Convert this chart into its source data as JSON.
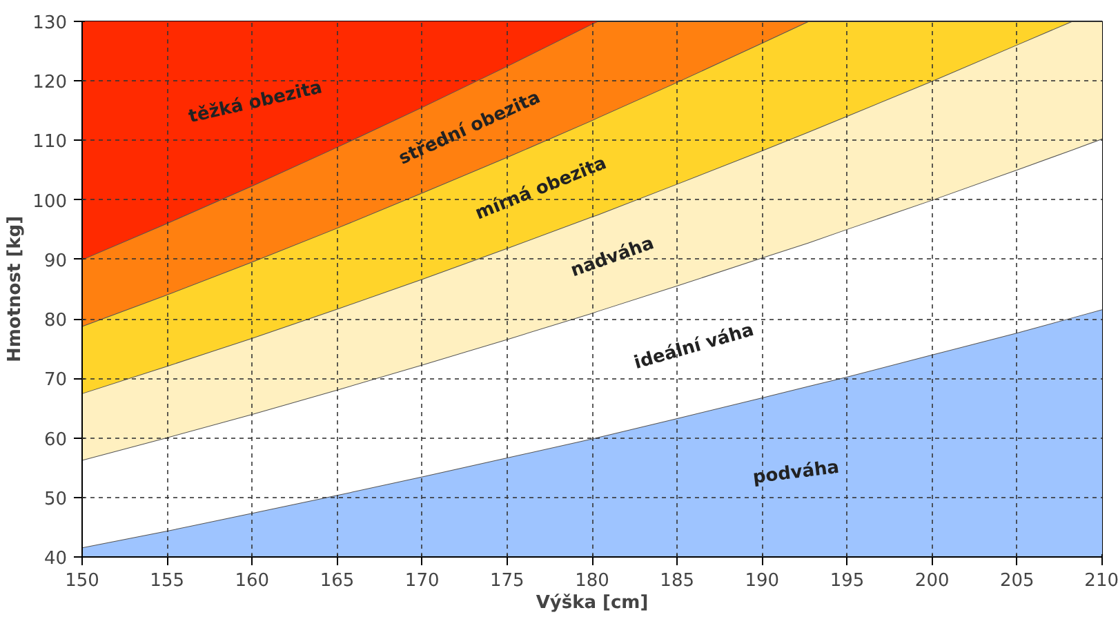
{
  "chart_data": {
    "type": "area",
    "xlabel": "Výška [cm]",
    "ylabel": "Hmotnost [kg]",
    "x": [
      150,
      155,
      160,
      165,
      170,
      175,
      180,
      180.3,
      185,
      190,
      192.7,
      195,
      200,
      205,
      208.2,
      210
    ],
    "series": [
      {
        "name": "podváha",
        "color": "#9ec4ff",
        "values": [
          41.6,
          44.4,
          47.4,
          50.4,
          53.5,
          56.7,
          59.9,
          60.1,
          63.3,
          66.8,
          68.7,
          70.3,
          74.0,
          77.7,
          80.2,
          81.6
        ]
      },
      {
        "name": "ideální váha",
        "color": "#ffffff",
        "values": [
          56.3,
          60.1,
          64.0,
          68.1,
          72.3,
          76.6,
          81.0,
          81.3,
          85.6,
          90.3,
          92.8,
          95.1,
          100.0,
          105.1,
          108.4,
          110.3
        ]
      },
      {
        "name": "nadváha",
        "color": "#fff0c0",
        "values": [
          67.5,
          72.1,
          76.8,
          81.7,
          86.7,
          91.9,
          97.2,
          97.5,
          102.7,
          108.3,
          111.4,
          114.1,
          120.0,
          126.1,
          130.0,
          130.0
        ]
      },
      {
        "name": "mírná obezita",
        "color": "#ffd42a",
        "values": [
          78.8,
          84.1,
          89.6,
          95.3,
          101.2,
          107.2,
          113.4,
          113.8,
          119.8,
          126.4,
          130.0,
          130.0,
          130.0,
          130.0,
          130.0,
          130.0
        ]
      },
      {
        "name": "střední obezita",
        "color": "#ff8010",
        "values": [
          90.0,
          96.1,
          102.4,
          108.9,
          115.6,
          122.5,
          129.6,
          130.0,
          130.0,
          130.0,
          130.0,
          130.0,
          130.0,
          130.0,
          130.0,
          130.0
        ]
      },
      {
        "name": "těžká obezita",
        "color": "#ff2a00",
        "values": [
          130,
          130,
          130,
          130,
          130,
          130,
          130,
          130,
          130,
          130,
          130,
          130,
          130,
          130,
          130,
          130
        ]
      }
    ],
    "xlim": [
      150,
      210
    ],
    "ylim": [
      40,
      130
    ],
    "xticks": [
      150,
      155,
      160,
      165,
      170,
      175,
      180,
      185,
      190,
      195,
      200,
      205,
      210
    ],
    "yticks": [
      40,
      50,
      60,
      70,
      80,
      90,
      100,
      110,
      120,
      130
    ],
    "grid": true
  }
}
